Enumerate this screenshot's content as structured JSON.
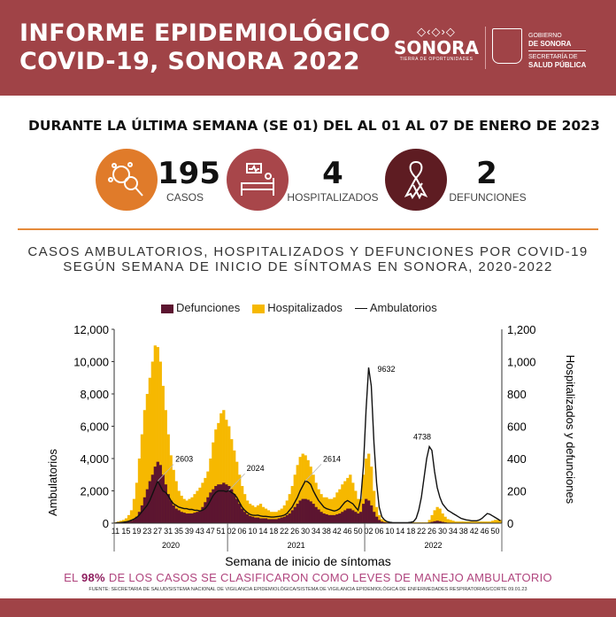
{
  "header": {
    "title_line1": "INFORME EPIDEMIOLÓGICO",
    "title_line2": "COVID-19, SONORA 2022",
    "logo_sonora": {
      "name": "SONORA",
      "tagline": "TIERRA DE OPORTUNIDADES"
    },
    "logo_gobierno": {
      "line1": "GOBIERNO",
      "line2": "DE SONORA",
      "line3": "SECRETARÍA DE",
      "line4": "SALUD PÚBLICA"
    }
  },
  "summary": {
    "period": "DURANTE LA ÚLTIMA SEMANA (SE 01) DEL AL 01 AL 07 DE ENERO DE 2023",
    "stats": [
      {
        "value": "195",
        "label": "CASOS",
        "icon": "virus-magnifier-icon",
        "color": "#e07b2a"
      },
      {
        "value": "4",
        "label": "HOSPITALIZADOS",
        "icon": "hospital-bed-icon",
        "color": "#a8464a"
      },
      {
        "value": "2",
        "label": "DEFUNCIONES",
        "icon": "ribbon-icon",
        "color": "#5e1c22"
      }
    ]
  },
  "colors": {
    "header": "#a04347",
    "accent": "#e58a3a",
    "defunciones": "#5c1530",
    "hospitalizados": "#f6b800",
    "ambulatorios": "#111111"
  },
  "chart_data": {
    "type": "bar+line",
    "title_line1": "CASOS AMBULATORIOS, HOSPITALIZADOS Y DEFUNCIONES POR COVID-19",
    "title_line2": "SEGÚN SEMANA DE INICIO DE SÍNTOMAS EN SONORA, 2020-2022",
    "xlabel": "Semana de inicio de síntomas",
    "ylabel_left": "Ambulatorios",
    "ylabel_right": "Hospitalizados y defunciones",
    "ylim_left": [
      0,
      12000
    ],
    "ylim_right": [
      0,
      1200
    ],
    "yticks_left": [
      "0",
      "2,000",
      "4,000",
      "6,000",
      "8,000",
      "10,000",
      "12,000"
    ],
    "yticks_right": [
      "0",
      "200",
      "400",
      "600",
      "800",
      "1,000",
      "1,200"
    ],
    "legend": [
      "Defunciones",
      "Hospitalizados",
      "Ambulatorios"
    ],
    "legend_position": "top",
    "years": [
      {
        "year": "2020",
        "first_week": 11,
        "last_week": 53,
        "tick_labels": [
          "11",
          "15",
          "19",
          "23",
          "27",
          "31",
          "35",
          "39",
          "43",
          "47",
          "51"
        ]
      },
      {
        "year": "2021",
        "first_week": 1,
        "last_week": 52,
        "tick_labels": [
          "02",
          "06",
          "10",
          "14",
          "18",
          "22",
          "26",
          "30",
          "34",
          "38",
          "42",
          "46",
          "50"
        ]
      },
      {
        "year": "2022",
        "first_week": 1,
        "last_week": 52,
        "tick_labels": [
          "02",
          "06",
          "10",
          "14",
          "18",
          "22",
          "26",
          "30",
          "34",
          "38",
          "42",
          "46",
          "50"
        ]
      }
    ],
    "annotations": [
      {
        "label": "2603",
        "year": "2020",
        "week": 27
      },
      {
        "label": "2024",
        "year": "2021",
        "week": 1
      },
      {
        "label": "2614",
        "year": "2021",
        "week": 30
      },
      {
        "label": "9632",
        "year": "2022",
        "week": 2
      },
      {
        "label": "4738",
        "year": "2022",
        "week": 25
      }
    ],
    "series": [
      {
        "name": "Ambulatorios",
        "axis": "left",
        "kind": "line",
        "values": [
          20,
          30,
          40,
          60,
          80,
          120,
          180,
          250,
          350,
          500,
          700,
          900,
          1100,
          1400,
          1800,
          2200,
          2603,
          2300,
          2000,
          1900,
          1700,
          1400,
          1200,
          1100,
          1000,
          950,
          900,
          900,
          850,
          850,
          800,
          800,
          750,
          800,
          900,
          1100,
          1400,
          1700,
          1900,
          2000,
          2000,
          2000,
          1950,
          2024,
          1900,
          1800,
          1600,
          1300,
          1000,
          800,
          650,
          550,
          500,
          480,
          500,
          450,
          420,
          420,
          400,
          380,
          380,
          400,
          420,
          450,
          500,
          600,
          800,
          1000,
          1300,
          1600,
          2000,
          2300,
          2614,
          2550,
          2400,
          2000,
          1700,
          1400,
          1200,
          1000,
          900,
          850,
          800,
          750,
          800,
          900,
          1100,
          1300,
          1400,
          1300,
          1200,
          1000,
          800,
          1500,
          3500,
          7000,
          9632,
          8500,
          5000,
          2500,
          1000,
          400,
          200,
          100,
          60,
          40,
          30,
          30,
          30,
          30,
          30,
          40,
          60,
          100,
          300,
          800,
          1600,
          2800,
          4000,
          4738,
          4500,
          3200,
          2200,
          1600,
          1200,
          1000,
          800,
          700,
          600,
          500,
          400,
          300,
          250,
          200,
          180,
          150,
          150,
          150,
          200,
          300,
          450,
          600,
          550,
          450,
          350,
          250,
          150
        ]
      },
      {
        "name": "Hospitalizados",
        "axis": "right",
        "kind": "bar",
        "values": [
          5,
          10,
          15,
          20,
          30,
          50,
          80,
          150,
          250,
          400,
          550,
          700,
          800,
          900,
          1000,
          1100,
          1090,
          1000,
          850,
          700,
          550,
          420,
          330,
          260,
          200,
          170,
          150,
          140,
          150,
          160,
          180,
          200,
          220,
          250,
          280,
          320,
          400,
          500,
          580,
          620,
          680,
          700,
          640,
          600,
          520,
          450,
          380,
          300,
          230,
          180,
          140,
          120,
          110,
          100,
          110,
          120,
          100,
          90,
          80,
          70,
          70,
          70,
          80,
          90,
          110,
          140,
          180,
          230,
          300,
          360,
          410,
          430,
          420,
          390,
          350,
          300,
          250,
          210,
          180,
          160,
          160,
          150,
          150,
          160,
          190,
          210,
          240,
          260,
          280,
          300,
          250,
          200,
          150,
          150,
          300,
          400,
          430,
          350,
          200,
          100,
          50,
          25,
          15,
          10,
          8,
          5,
          5,
          5,
          5,
          5,
          5,
          5,
          5,
          5,
          5,
          5,
          5,
          5,
          5,
          20,
          50,
          80,
          100,
          90,
          60,
          40,
          25,
          20,
          15,
          10,
          10,
          10,
          10,
          10,
          10,
          10,
          10,
          10,
          10,
          10,
          10,
          10,
          10,
          15,
          20,
          20,
          20
        ]
      },
      {
        "name": "Defunciones",
        "axis": "right",
        "kind": "bar",
        "values": [
          1,
          2,
          3,
          5,
          8,
          10,
          15,
          25,
          40,
          70,
          110,
          160,
          210,
          260,
          300,
          350,
          380,
          360,
          300,
          240,
          180,
          140,
          110,
          90,
          80,
          70,
          65,
          60,
          60,
          60,
          65,
          70,
          80,
          100,
          130,
          160,
          190,
          210,
          230,
          240,
          240,
          250,
          240,
          230,
          210,
          180,
          150,
          120,
          90,
          70,
          55,
          45,
          40,
          35,
          35,
          30,
          30,
          30,
          25,
          25,
          25,
          25,
          30,
          35,
          40,
          50,
          60,
          80,
          100,
          120,
          140,
          150,
          150,
          145,
          135,
          120,
          100,
          85,
          70,
          60,
          55,
          50,
          50,
          50,
          55,
          60,
          70,
          80,
          90,
          90,
          80,
          70,
          60,
          70,
          120,
          150,
          140,
          110,
          70,
          40,
          20,
          10,
          6,
          4,
          3,
          2,
          2,
          2,
          2,
          2,
          2,
          2,
          2,
          2,
          2,
          2,
          2,
          2,
          2,
          4,
          8,
          12,
          15,
          12,
          8,
          5,
          3,
          2,
          2,
          1,
          1,
          1,
          1,
          1,
          1,
          1,
          1,
          1,
          1,
          1,
          1,
          1,
          1,
          1,
          1,
          1,
          1
        ]
      }
    ]
  },
  "footer": {
    "note_pre": "EL ",
    "note_pct": "98%",
    "note_post": " DE LOS CASOS SE CLASIFICARON COMO LEVES DE  MANEJO AMBULATORIO",
    "source": "FUENTE: SECRETARIA DE SALUD/SISTEMA NACIONAL DE VIGILANCIA EPIDEMIOLÓGICA/SISTEMA DE VIGILANCIA EPIDEMIOLÓGICA DE ENFERMEDADES RESPIRATORIAS/CORTE 09.01.23"
  }
}
